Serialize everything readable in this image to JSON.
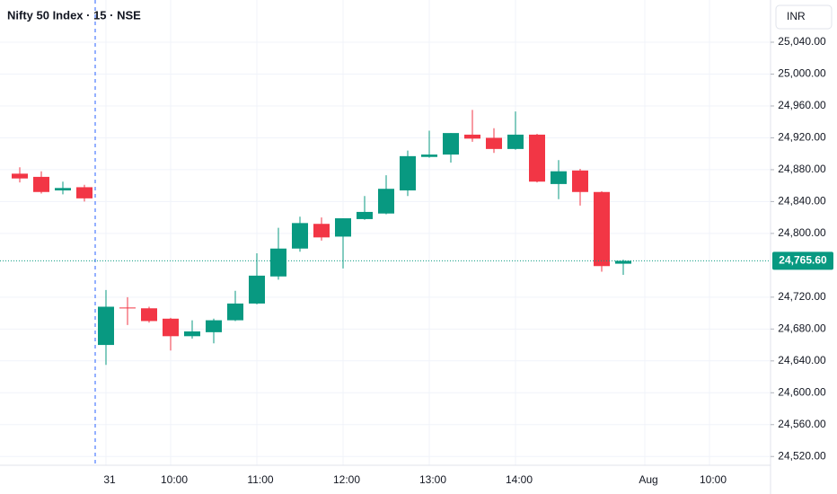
{
  "chart_data": {
    "type": "candlestick",
    "title": "Nifty 50 Index · 15 · NSE",
    "currency": "INR",
    "categories": [
      null,
      null,
      null,
      null,
      "31",
      null,
      null,
      "10:00",
      null,
      null,
      null,
      "11:00",
      null,
      null,
      null,
      "12:00",
      null,
      null,
      null,
      "13:00",
      null,
      null,
      null,
      "14:00",
      null,
      null,
      null,
      null,
      null,
      "Aug",
      null,
      null,
      "10:00",
      null,
      null
    ],
    "open": [
      24875,
      24871,
      24854,
      24858,
      24660,
      24707,
      24706,
      24693,
      24671,
      24676,
      24691,
      24712,
      24746,
      24781,
      24812,
      24796,
      24818,
      24825,
      24854,
      24896,
      24899,
      24924,
      24920,
      24906,
      24924,
      24862,
      24879,
      24852,
      24762,
      null,
      null,
      null,
      null,
      null,
      null
    ],
    "high": [
      24883,
      24878,
      24865,
      24861,
      24729,
      24720,
      24708,
      24694,
      24691,
      24693,
      24728,
      24775,
      24807,
      24821,
      24820,
      24819,
      24847,
      24873,
      24904,
      24929,
      24926,
      24955,
      24932,
      24953,
      24925,
      24892,
      24881,
      24853,
      24767,
      null,
      null,
      null,
      null,
      null,
      null
    ],
    "low": [
      24864,
      24850,
      24849,
      24840,
      24635,
      24685,
      24688,
      24653,
      24668,
      24662,
      24690,
      24711,
      24742,
      24777,
      24791,
      24756,
      24817,
      24824,
      24847,
      24895,
      24889,
      24915,
      24901,
      24905,
      24864,
      24843,
      24835,
      24752,
      24748,
      null,
      null,
      null,
      null,
      null,
      null
    ],
    "close": [
      24869,
      24852,
      24857,
      24844,
      24708,
      24706,
      24690,
      24671,
      24677,
      24691,
      24712,
      24747,
      24781,
      24813,
      24795,
      24819,
      24827,
      24856,
      24897,
      24899,
      24926,
      24919,
      24906,
      24924,
      24865,
      24878,
      24852,
      24759,
      24765.6,
      null,
      null,
      null,
      null,
      null,
      null
    ],
    "colors": {
      "up": "#089981",
      "down": "#f23645"
    },
    "last_price": {
      "value": 24765.6,
      "label": "24,765.60"
    },
    "ylim": [
      24509,
      25093
    ],
    "yticks": [
      {
        "value": 25040,
        "label": "25,040.00"
      },
      {
        "value": 25000,
        "label": "25,000.00"
      },
      {
        "value": 24960,
        "label": "24,960.00"
      },
      {
        "value": 24920,
        "label": "24,920.00"
      },
      {
        "value": 24880,
        "label": "24,880.00"
      },
      {
        "value": 24840,
        "label": "24,840.00"
      },
      {
        "value": 24800,
        "label": "24,800.00"
      },
      {
        "value": 24720,
        "label": "24,720.00"
      },
      {
        "value": 24680,
        "label": "24,680.00"
      },
      {
        "value": 24640,
        "label": "24,640.00"
      },
      {
        "value": 24600,
        "label": "24,600.00"
      },
      {
        "value": 24560,
        "label": "24,560.00"
      },
      {
        "value": 24520,
        "label": "24,520.00"
      }
    ],
    "grid": true
  }
}
